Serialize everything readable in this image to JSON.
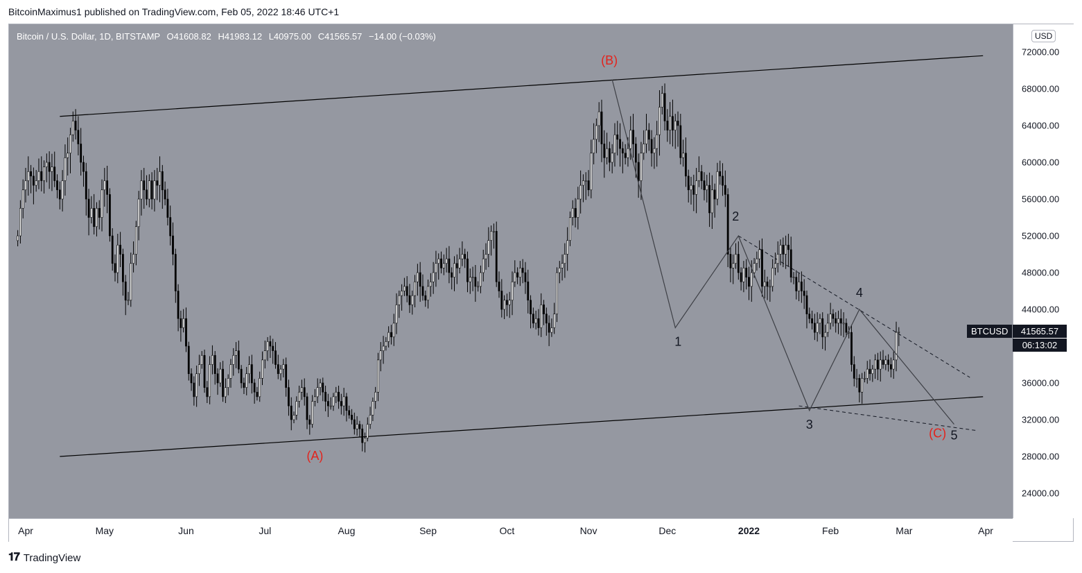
{
  "header": {
    "publisher": "BitcoinMaximus1 published on TradingView.com, Feb 05, 2022 18:46 UTC+1"
  },
  "legend": {
    "symbol": "Bitcoin / U.S. Dollar, 1D, BITSTAMP",
    "open": "O41608.82",
    "high": "H41983.12",
    "low": "L40975.00",
    "close": "C41565.57",
    "change": "−14.00 (−0.03%)"
  },
  "currency": "USD",
  "price_tag": {
    "symbol": "BTCUSD",
    "price": "41565.57",
    "timer": "06:13:02"
  },
  "brand": {
    "logo": "𝟭𝟳",
    "name": "TradingView"
  },
  "colors": {
    "plot_bg": "#9598a1",
    "candle": "#000000",
    "wave_red": "#e3231c",
    "wave_black": "#131722"
  },
  "chart_data": {
    "type": "candlestick",
    "title": "",
    "x_axis": {
      "ticks": [
        "Apr",
        "May",
        "Jun",
        "Jul",
        "Aug",
        "Sep",
        "Oct",
        "Nov",
        "Dec",
        "2022",
        "Feb",
        "Mar",
        "Apr"
      ],
      "bold_ticks": [
        "2022"
      ]
    },
    "y_axis": {
      "ticks": [
        "72000.00",
        "68000.00",
        "64000.00",
        "60000.00",
        "56000.00",
        "52000.00",
        "48000.00",
        "44000.00",
        "36000.00",
        "32000.00",
        "28000.00",
        "24000.00"
      ],
      "ylim": [
        21600,
        74500
      ]
    },
    "series": [
      {
        "x_start": "2021-03-29",
        "closes": [
          52000,
          55000,
          57000,
          58000,
          59000,
          58500,
          57500,
          58000,
          59000,
          58000,
          59500,
          60000,
          59000,
          59500,
          58000,
          57000,
          56000,
          58000,
          60500,
          61000,
          63000,
          64500,
          63500,
          62000,
          60000,
          59000,
          56000,
          54000,
          55000,
          53000,
          55000,
          54000,
          57000,
          58000,
          56500,
          52000,
          49000,
          48000,
          51000,
          50000,
          47000,
          45000,
          45000,
          49000,
          50000,
          53000,
          56000,
          58000,
          57000,
          56000,
          58000,
          56000,
          58000,
          57500,
          59000,
          57000,
          56000,
          54000,
          52000,
          50000,
          46000,
          43000,
          42000,
          43000,
          40000,
          37000,
          36000,
          34500,
          37000,
          38000,
          39000,
          35500,
          34500,
          38000,
          39000,
          37000,
          36000,
          37500,
          34500,
          35500,
          36500,
          38000,
          39000,
          39500,
          37500,
          36000,
          35500,
          37000,
          38000,
          36000,
          35000,
          34500,
          36500,
          38500,
          39500,
          40500,
          40000,
          39500,
          38000,
          37000,
          37500,
          38000,
          35500,
          33500,
          32000,
          32500,
          34000,
          35000,
          35500,
          34500,
          32000,
          31500,
          34000,
          34500,
          35500,
          36000,
          35000,
          34000,
          33500,
          33500,
          34500,
          35000,
          34000,
          33500,
          34500,
          33000,
          32500,
          32000,
          31000,
          31500,
          31000,
          29500,
          30000,
          31500,
          32500,
          34000,
          35000,
          38500,
          39500,
          40000,
          40500,
          41500,
          41000,
          42500,
          44500,
          45500,
          46000,
          46500,
          45500,
          44500,
          45500,
          47000,
          48000,
          46500,
          45500,
          45000,
          46500,
          47000,
          48000,
          49000,
          49500,
          48500,
          49000,
          49500,
          48000,
          47500,
          49000,
          48500,
          49500,
          50000,
          49500,
          47000,
          47500,
          47500,
          46500,
          46500,
          48000,
          49500,
          50000,
          51500,
          52500,
          52500,
          47000,
          46000,
          44000,
          45000,
          44500,
          45000,
          47000,
          48000,
          47500,
          48500,
          48000,
          47000,
          45000,
          43500,
          42500,
          43000,
          42000,
          44500,
          43500,
          42500,
          41500,
          42000,
          43500,
          48000,
          48500,
          49000,
          50000,
          51500,
          54000,
          55000,
          54000,
          56000,
          57500,
          58000,
          58000,
          57000,
          61000,
          62500,
          64000,
          65500,
          62000,
          60500,
          61500,
          60000,
          61000,
          63000,
          62500,
          61500,
          61000,
          60500,
          61500,
          63500,
          62000,
          60000,
          58000,
          61000,
          62000,
          63500,
          62500,
          61000,
          61500,
          63000,
          66000,
          67500,
          64500,
          63500,
          65000,
          63500,
          64500,
          64000,
          60500,
          61000,
          58500,
          57000,
          57500,
          56500,
          58000,
          59000,
          58000,
          57000,
          57500,
          54500,
          57000,
          56000,
          59000,
          58500,
          57500,
          56500,
          50000,
          48500,
          49000,
          50000,
          48000,
          47000,
          48500,
          47500,
          46500,
          48000,
          49000,
          49500,
          50500,
          46500,
          47000,
          46500,
          46500,
          48500,
          49000,
          50000,
          51000,
          50000,
          51000,
          50500,
          47500,
          47500,
          46000,
          47000,
          46000,
          45500,
          43500,
          43000,
          42500,
          41500,
          42500,
          43000,
          41000,
          41500,
          42500,
          43500,
          43000,
          42500,
          43000,
          42500,
          42500,
          41500,
          41500,
          38000,
          36500,
          36500,
          35000,
          36500,
          36500,
          37500,
          37000,
          37500,
          38500,
          37500,
          38500,
          38000,
          38500,
          38000,
          37500,
          38500,
          41500,
          41565
        ]
      }
    ],
    "annotations": [
      {
        "label": "(A)",
        "price": 29300,
        "date": "2021-07-20",
        "color": "red"
      },
      {
        "label": "(B)",
        "price": 69000,
        "date": "2021-11-10",
        "color": "red"
      },
      {
        "label": "(C)",
        "price": 31000,
        "date": "2022-03-19",
        "color": "red"
      },
      {
        "label": "1",
        "price": 42000,
        "date": "2021-12-04",
        "color": "black"
      },
      {
        "label": "2",
        "price": 52000,
        "date": "2021-12-28",
        "color": "black"
      },
      {
        "label": "3",
        "price": 33000,
        "date": "2022-01-24",
        "color": "black"
      },
      {
        "label": "4",
        "price": 44000,
        "date": "2022-02-12",
        "color": "black"
      },
      {
        "label": "5",
        "price": 31500,
        "date": "2022-03-20",
        "color": "black"
      }
    ]
  }
}
